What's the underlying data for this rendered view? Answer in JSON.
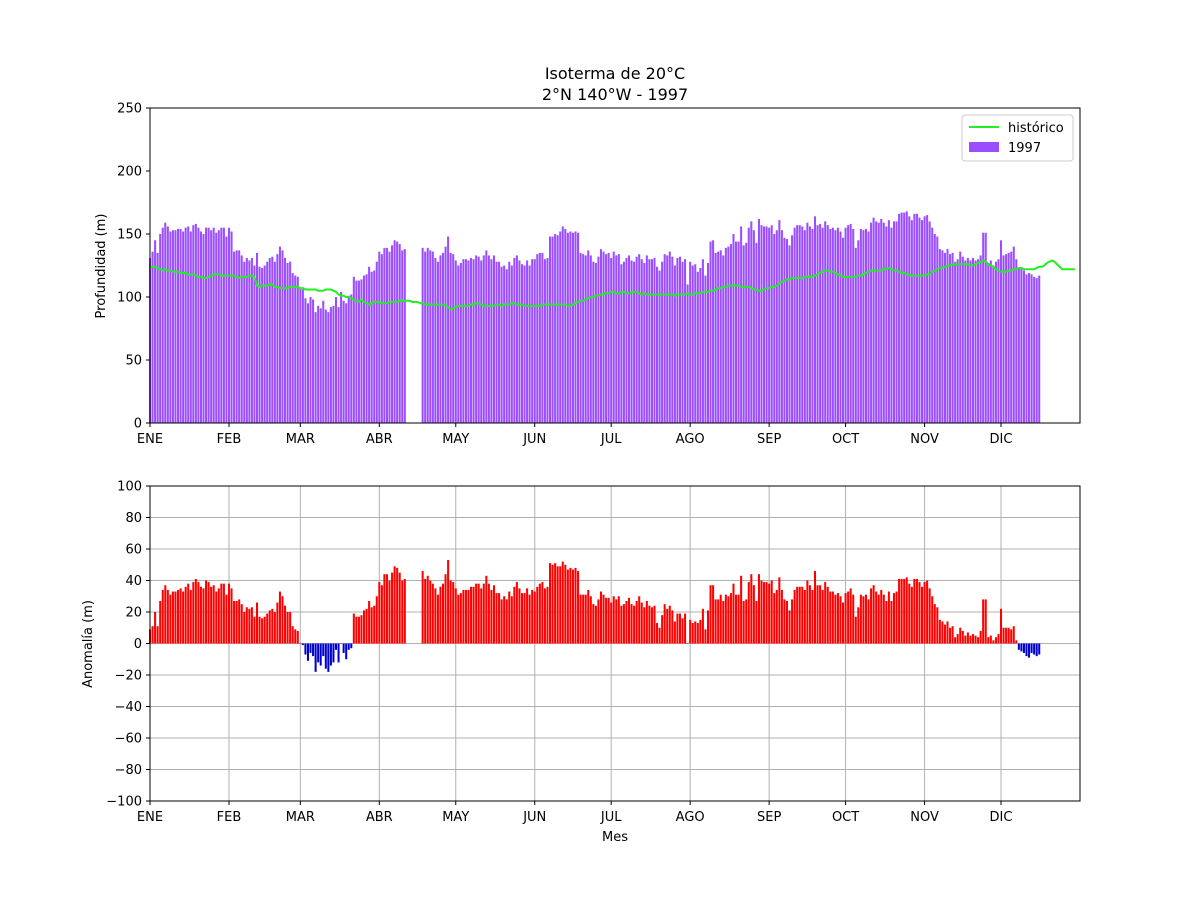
{
  "chart_data": [
    {
      "type": "bar",
      "title": "Isoterma de 20°C\n2°N 140°W - 1997",
      "title_lines": [
        "Isoterma de 20°C",
        "2°N 140°W - 1997"
      ],
      "xlabel": "",
      "ylabel": "Profundidad (m)",
      "ylim": [
        0,
        250
      ],
      "yticks": [
        0,
        50,
        100,
        150,
        200,
        250
      ],
      "xlim": [
        1,
        366
      ],
      "month_ticks": [
        "ENE",
        "FEB",
        "MAR",
        "ABR",
        "MAY",
        "JUN",
        "JUL",
        "AGO",
        "SEP",
        "OCT",
        "NOV",
        "DIC"
      ],
      "month_start_day": [
        1,
        32,
        60,
        91,
        121,
        152,
        182,
        213,
        244,
        274,
        305,
        335
      ],
      "grid": false,
      "legend": "top-right",
      "legend_entries": [
        "histórico",
        "1997"
      ],
      "colors": {
        "bars": "#9b4dff",
        "historico": "#22ee22"
      },
      "day_of_year_start": 1,
      "series": [
        {
          "name": "1997",
          "kind": "bar",
          "values": [
            131,
            136,
            145,
            135,
            150,
            155,
            159,
            156,
            152,
            153,
            153,
            154,
            154,
            152,
            155,
            156,
            152,
            157,
            158,
            155,
            152,
            150,
            155,
            155,
            153,
            155,
            151,
            153,
            155,
            155,
            148,
            155,
            152,
            136,
            137,
            137,
            133,
            128,
            131,
            129,
            131,
            125,
            135,
            124,
            123,
            125,
            128,
            131,
            132,
            128,
            134,
            140,
            137,
            131,
            127,
            128,
            119,
            117,
            116,
            107,
            106,
            99,
            95,
            100,
            98,
            88,
            93,
            91,
            97,
            90,
            88,
            92,
            93,
            100,
            92,
            104,
            97,
            95,
            101,
            102,
            116,
            113,
            113,
            114,
            117,
            118,
            124,
            120,
            121,
            128,
            136,
            134,
            139,
            139,
            136,
            141,
            145,
            144,
            142,
            137,
            138,
            null,
            null,
            null,
            null,
            null,
            null,
            139,
            136,
            139,
            137,
            136,
            131,
            128,
            133,
            135,
            140,
            148,
            135,
            134,
            129,
            125,
            127,
            130,
            130,
            129,
            131,
            130,
            133,
            132,
            129,
            133,
            137,
            133,
            130,
            133,
            128,
            128,
            124,
            125,
            122,
            128,
            125,
            131,
            133,
            129,
            126,
            125,
            129,
            125,
            130,
            130,
            134,
            135,
            135,
            130,
            131,
            148,
            148,
            150,
            149,
            152,
            156,
            154,
            151,
            152,
            151,
            152,
            151,
            135,
            134,
            133,
            137,
            133,
            128,
            127,
            132,
            138,
            136,
            134,
            135,
            131,
            136,
            133,
            134,
            126,
            128,
            131,
            133,
            129,
            128,
            132,
            134,
            130,
            127,
            133,
            130,
            130,
            131,
            124,
            121,
            128,
            134,
            133,
            136,
            132,
            125,
            131,
            132,
            128,
            130,
            110,
            128,
            125,
            126,
            120,
            123,
            130,
            117,
            127,
            144,
            145,
            135,
            136,
            137,
            133,
            139,
            140,
            142,
            150,
            144,
            144,
            156,
            141,
            143,
            155,
            160,
            153,
            143,
            162,
            157,
            156,
            156,
            155,
            157,
            150,
            153,
            161,
            153,
            147,
            146,
            141,
            149,
            155,
            157,
            157,
            156,
            153,
            159,
            156,
            154,
            164,
            157,
            158,
            155,
            160,
            157,
            154,
            155,
            153,
            155,
            152,
            147,
            155,
            157,
            158,
            154,
            139,
            145,
            154,
            153,
            154,
            152,
            159,
            163,
            160,
            159,
            162,
            159,
            156,
            161,
            155,
            160,
            160,
            166,
            167,
            167,
            168,
            164,
            161,
            166,
            166,
            163,
            161,
            164,
            165,
            160,
            155,
            150,
            148,
            138,
            137,
            135,
            138,
            134,
            135,
            128,
            130,
            136,
            132,
            129,
            131,
            129,
            131,
            129,
            130,
            133,
            151,
            151,
            127,
            129,
            125,
            128,
            130,
            145,
            133,
            134,
            135,
            136,
            140,
            130,
            123,
            123,
            121,
            118,
            119,
            118,
            116,
            115,
            117
          ]
        },
        {
          "name": "histórico",
          "kind": "line",
          "values": [
            123,
            124,
            124,
            123,
            122,
            121,
            122,
            121,
            121,
            120,
            120,
            120,
            119,
            119,
            119,
            118,
            118,
            118,
            117,
            116,
            116,
            115,
            115,
            116,
            117,
            118,
            118,
            118,
            117,
            117,
            117,
            117,
            117,
            117,
            116,
            115,
            116,
            116,
            116,
            117,
            117,
            116,
            109,
            108,
            109,
            109,
            109,
            110,
            110,
            108,
            108,
            107,
            107,
            107,
            107,
            108,
            108,
            108,
            108,
            107,
            107,
            106,
            106,
            106,
            106,
            106,
            105,
            105,
            105,
            106,
            106,
            106,
            105,
            104,
            102,
            101,
            101,
            100,
            100,
            99,
            98,
            97,
            96,
            98,
            96,
            95,
            94,
            95,
            96,
            96,
            96,
            95,
            95,
            95,
            96,
            96,
            96,
            96,
            97,
            97,
            97,
            97,
            97,
            96,
            96,
            96,
            95,
            95,
            94,
            94,
            94,
            94,
            94,
            94,
            94,
            94,
            93,
            92,
            90,
            91,
            92,
            93,
            93,
            93,
            93,
            93,
            94,
            94,
            95,
            95,
            94,
            93,
            93,
            93,
            93,
            93,
            94,
            94,
            93,
            94,
            94,
            94,
            95,
            95,
            94,
            94,
            94,
            93,
            93,
            93,
            93,
            93,
            93,
            93,
            94,
            94,
            94,
            94,
            94,
            94,
            94,
            94,
            94,
            94,
            93,
            93,
            94,
            95,
            96,
            97,
            97,
            98,
            99,
            100,
            100,
            101,
            101,
            102,
            102,
            103,
            103,
            104,
            104,
            103,
            103,
            104,
            104,
            103,
            103,
            104,
            104,
            104,
            103,
            102,
            103,
            102,
            102,
            102,
            102,
            102,
            102,
            102,
            102,
            102,
            102,
            102,
            101,
            102,
            102,
            102,
            102,
            103,
            102,
            102,
            103,
            103,
            103,
            104,
            104,
            104,
            105,
            105,
            106,
            107,
            107,
            108,
            108,
            109,
            109,
            109,
            109,
            109,
            108,
            108,
            108,
            108,
            107,
            106,
            106,
            105,
            105,
            106,
            107,
            107,
            108,
            108,
            109,
            111,
            112,
            113,
            114,
            114,
            115,
            115,
            115,
            115,
            115,
            116,
            116,
            116,
            116,
            117,
            118,
            119,
            120,
            121,
            121,
            120,
            120,
            119,
            118,
            117,
            116,
            116,
            116,
            116,
            116,
            116,
            117,
            117,
            118,
            119,
            120,
            121,
            121,
            121,
            121,
            121,
            122,
            122,
            123,
            122,
            121,
            121,
            120,
            119,
            119,
            118,
            118,
            117,
            117,
            117,
            117,
            117,
            117,
            118,
            118,
            120,
            121,
            122,
            123,
            123,
            124,
            125,
            125,
            126,
            126,
            126,
            126,
            126,
            126,
            126,
            125,
            125,
            126,
            127,
            128,
            129,
            128,
            126,
            125,
            124,
            122,
            121,
            120,
            120,
            120,
            121,
            121,
            122,
            122,
            123,
            123,
            122,
            122,
            122,
            122,
            122,
            123,
            124,
            124,
            125,
            127,
            128,
            129,
            128,
            126,
            124,
            122,
            122,
            122,
            122,
            122,
            122
          ]
        }
      ]
    },
    {
      "type": "bar",
      "title": "",
      "xlabel": "Mes",
      "ylabel": "Anomalía (m)",
      "ylim": [
        -100,
        100
      ],
      "yticks": [
        -100,
        -80,
        -60,
        -40,
        -20,
        0,
        20,
        40,
        60,
        80,
        100
      ],
      "xlim": [
        1,
        366
      ],
      "month_ticks": [
        "ENE",
        "FEB",
        "MAR",
        "ABR",
        "MAY",
        "JUN",
        "JUL",
        "AGO",
        "SEP",
        "OCT",
        "NOV",
        "DIC"
      ],
      "month_start_day": [
        1,
        32,
        60,
        91,
        121,
        152,
        182,
        213,
        244,
        274,
        305,
        335
      ],
      "grid": true,
      "colors": {
        "positive": "#ff0000",
        "negative": "#0000cc"
      },
      "day_of_year_start": 1,
      "series": [
        {
          "name": "",
          "kind": "bar",
          "values": [
            9,
            11,
            20,
            11,
            27,
            34,
            37,
            34,
            31,
            33,
            33,
            34,
            35,
            33,
            36,
            38,
            34,
            39,
            41,
            39,
            36,
            35,
            40,
            39,
            36,
            37,
            33,
            35,
            38,
            38,
            31,
            38,
            35,
            27,
            27,
            28,
            25,
            20,
            23,
            22,
            23,
            17,
            26,
            17,
            16,
            17,
            19,
            21,
            22,
            20,
            26,
            33,
            30,
            24,
            20,
            20,
            11,
            9,
            8,
            0,
            -1,
            -7,
            -11,
            -6,
            -8,
            -18,
            -12,
            -14,
            -8,
            -16,
            -18,
            -14,
            -12,
            -4,
            -12,
            0,
            -6,
            -10,
            -4,
            -3,
            19,
            17,
            17,
            18,
            21,
            22,
            27,
            23,
            24,
            30,
            39,
            37,
            44,
            44,
            40,
            45,
            49,
            48,
            45,
            40,
            41,
            null,
            null,
            null,
            null,
            null,
            null,
            46,
            41,
            43,
            40,
            38,
            35,
            31,
            36,
            38,
            44,
            53,
            40,
            39,
            35,
            31,
            32,
            34,
            34,
            34,
            36,
            36,
            38,
            38,
            35,
            38,
            43,
            38,
            34,
            37,
            32,
            32,
            28,
            30,
            28,
            33,
            30,
            36,
            39,
            35,
            32,
            32,
            35,
            31,
            34,
            33,
            36,
            38,
            39,
            35,
            36,
            51,
            50,
            51,
            49,
            49,
            52,
            50,
            47,
            48,
            47,
            48,
            46,
            31,
            31,
            31,
            34,
            30,
            25,
            24,
            28,
            33,
            31,
            29,
            29,
            26,
            30,
            28,
            30,
            24,
            25,
            27,
            29,
            25,
            24,
            27,
            30,
            26,
            23,
            27,
            24,
            23,
            24,
            13,
            10,
            18,
            25,
            22,
            24,
            21,
            14,
            19,
            19,
            16,
            19,
            0,
            15,
            13,
            14,
            13,
            15,
            22,
            9,
            21,
            37,
            37,
            28,
            28,
            31,
            27,
            31,
            30,
            32,
            38,
            31,
            31,
            43,
            27,
            28,
            39,
            44,
            37,
            27,
            44,
            40,
            39,
            39,
            38,
            40,
            32,
            34,
            42,
            34,
            28,
            27,
            21,
            28,
            34,
            36,
            36,
            36,
            34,
            40,
            37,
            34,
            46,
            37,
            37,
            34,
            39,
            36,
            33,
            33,
            31,
            32,
            30,
            26,
            32,
            33,
            35,
            31,
            17,
            23,
            31,
            30,
            31,
            28,
            35,
            37,
            33,
            31,
            34,
            31,
            27,
            33,
            27,
            32,
            33,
            41,
            41,
            41,
            42,
            38,
            36,
            41,
            41,
            39,
            36,
            39,
            40,
            35,
            30,
            25,
            23,
            15,
            14,
            12,
            14,
            10,
            11,
            4,
            6,
            10,
            8,
            5,
            7,
            5,
            6,
            5,
            4,
            8,
            28,
            28,
            4,
            5,
            2,
            4,
            6,
            22,
            10,
            10,
            10,
            9,
            11,
            2,
            -4,
            -5,
            -6,
            -8,
            -9,
            -6,
            -7,
            -8,
            -7
          ]
        }
      ]
    }
  ]
}
